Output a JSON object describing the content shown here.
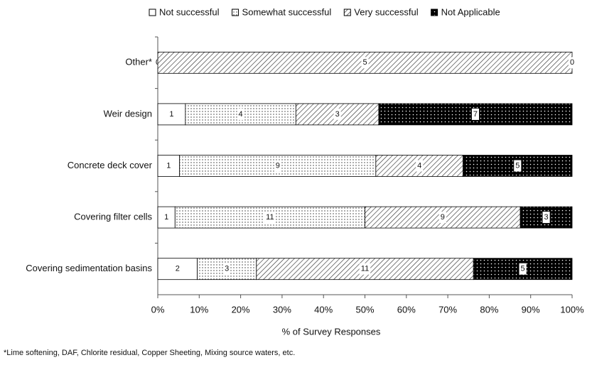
{
  "chart_data": {
    "type": "bar",
    "orientation": "horizontal",
    "stacking": "percent",
    "categories": [
      "Other*",
      "Weir design",
      "Concrete deck cover",
      "Covering filter cells",
      "Covering sedimentation basins"
    ],
    "series": [
      {
        "name": "Not successful",
        "color": "#ffffff",
        "pattern": "none",
        "values": [
          0,
          1,
          1,
          1,
          2
        ]
      },
      {
        "name": "Somewhat successful",
        "color": "#ffffff",
        "pattern": "dots",
        "values": [
          null,
          4,
          9,
          11,
          3
        ]
      },
      {
        "name": "Very successful",
        "color": "#ffffff",
        "pattern": "hatch",
        "values": [
          5,
          3,
          4,
          9,
          11
        ]
      },
      {
        "name": "Not Applicable",
        "color": "#000000",
        "pattern": "dots-light",
        "values": [
          0,
          7,
          5,
          3,
          5
        ]
      }
    ],
    "xlim": [
      0,
      100
    ],
    "xticks": [
      {
        "value": 0,
        "label": "0%"
      },
      {
        "value": 10,
        "label": "10%"
      },
      {
        "value": 20,
        "label": "20%"
      },
      {
        "value": 30,
        "label": "30%"
      },
      {
        "value": 40,
        "label": "40%"
      },
      {
        "value": 50,
        "label": "50%"
      },
      {
        "value": 60,
        "label": "60%"
      },
      {
        "value": 70,
        "label": "70%"
      },
      {
        "value": 80,
        "label": "80%"
      },
      {
        "value": 90,
        "label": "90%"
      },
      {
        "value": 100,
        "label": "100%"
      }
    ],
    "x_label": "% of Survey Responses",
    "legend": "top",
    "footnote": "*Lime softening, DAF, Chlorite residual, Copper Sheeting, Mixing source waters, etc."
  }
}
